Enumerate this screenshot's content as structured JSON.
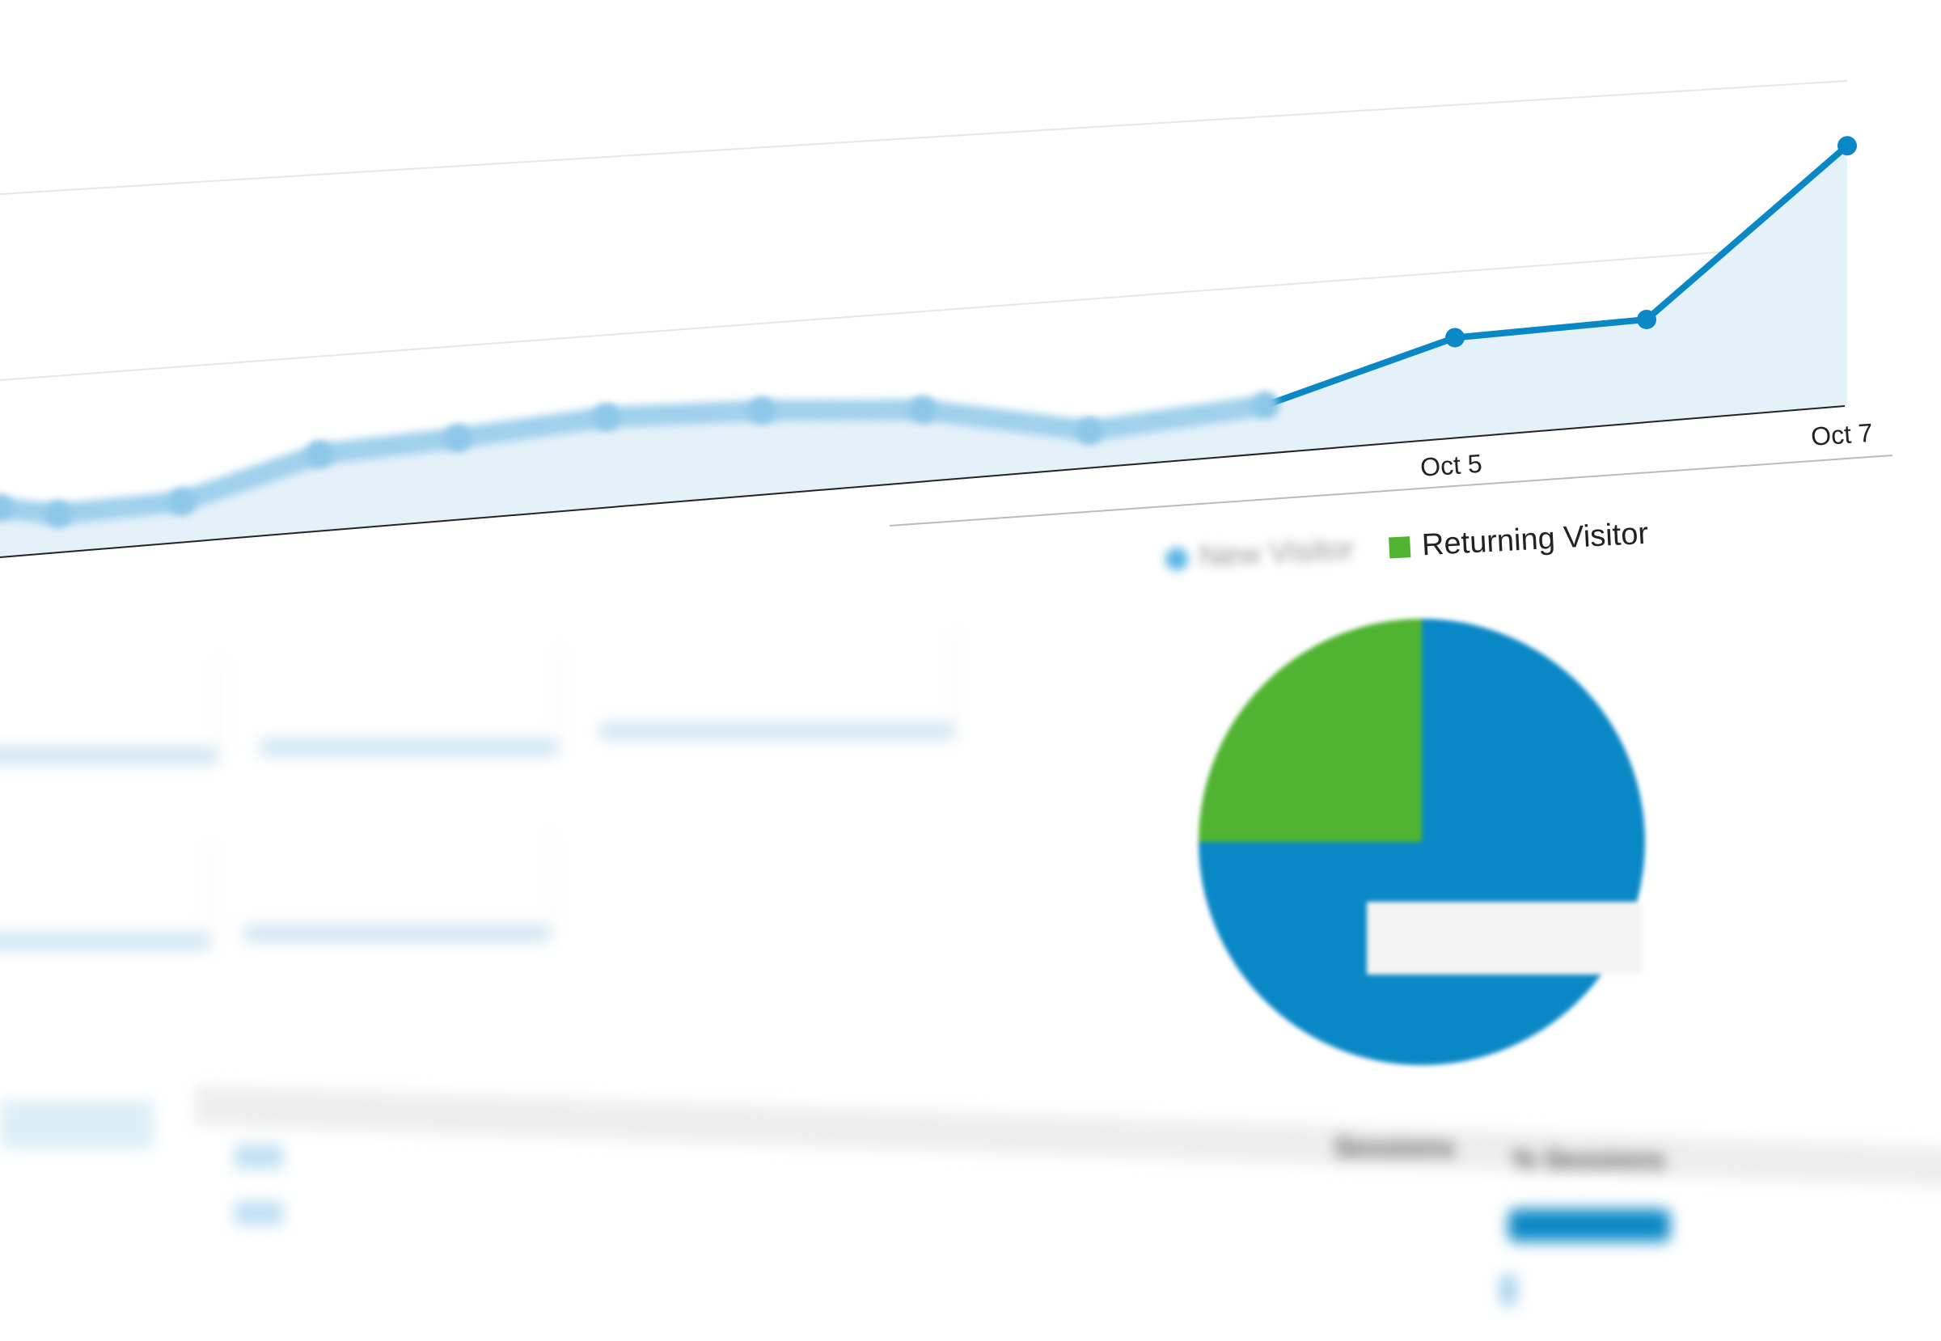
{
  "chart_data": [
    {
      "type": "area",
      "series": [
        {
          "values": [
            40,
            31,
            33,
            62,
            66,
            73,
            68,
            58,
            30,
            39,
            81,
            83,
            210
          ]
        }
      ],
      "x_tick_labels": [
        "Oct 5",
        "Oct 7"
      ],
      "grid": true,
      "colors": {
        "line": "#0a88c6",
        "fill": "#e4f1f9"
      }
    },
    {
      "type": "pie",
      "legend": [
        "New Visitor",
        "Returning Visitor"
      ],
      "values": [
        75,
        25
      ],
      "colors": [
        "#0a88c6",
        "#50b432"
      ],
      "legend_position": "top"
    }
  ],
  "table": {
    "columns": [
      "Sessions",
      "% Sessions"
    ]
  }
}
